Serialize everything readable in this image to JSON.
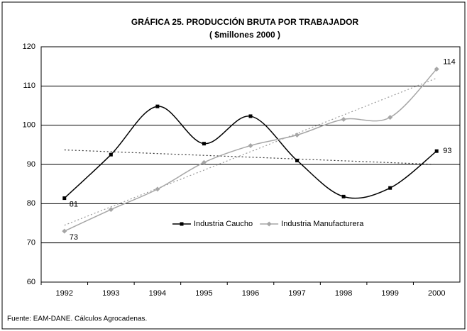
{
  "chart_data": {
    "type": "line",
    "title": "GRÁFICA 25. PRODUCCIÓN BRUTA POR TRABAJADOR",
    "subtitle": "( $millones 2000 )",
    "categories": [
      "1992",
      "1993",
      "1994",
      "1995",
      "1996",
      "1997",
      "1998",
      "1999",
      "2000"
    ],
    "series": [
      {
        "name": "Industria Caucho",
        "color": "#000000",
        "values": [
          81.4,
          92.5,
          104.8,
          95.3,
          102.3,
          91,
          81.8,
          84,
          93.4
        ],
        "value_labels": [
          "81",
          null,
          null,
          null,
          null,
          null,
          null,
          null,
          "93"
        ],
        "trend": [
          93.7,
          90
        ]
      },
      {
        "name": "Industria Manufacturera",
        "color": "#a6a6a6",
        "values": [
          73,
          78.5,
          83.7,
          90.5,
          94.8,
          97.5,
          101.5,
          102,
          114.3
        ],
        "value_labels": [
          "73",
          null,
          null,
          null,
          null,
          null,
          null,
          null,
          "114"
        ],
        "trend": [
          74.5,
          112
        ]
      }
    ],
    "ylim": [
      60,
      120
    ],
    "yticks": [
      60,
      70,
      80,
      90,
      100,
      110,
      120
    ],
    "grid": true,
    "source": "Fuente: EAM-DANE. Cálculos Agrocadenas."
  }
}
